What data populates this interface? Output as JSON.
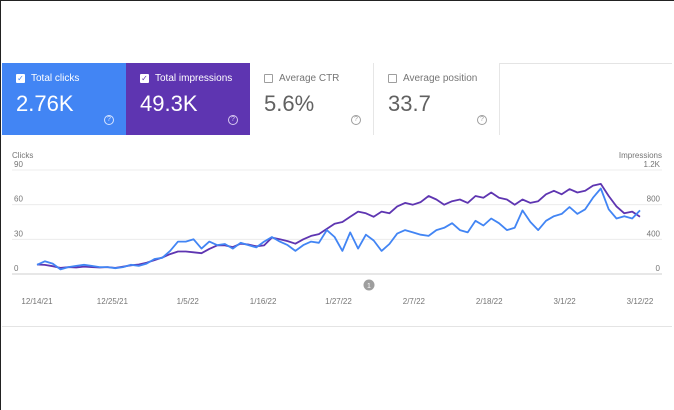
{
  "metrics": [
    {
      "label": "Total clicks",
      "value": "2.76K",
      "checked": true
    },
    {
      "label": "Total impressions",
      "value": "49.3K",
      "checked": true
    },
    {
      "label": "Average CTR",
      "value": "5.6%",
      "checked": false
    },
    {
      "label": "Average position",
      "value": "33.7",
      "checked": false
    }
  ],
  "colors": {
    "clicks": "#4285f4",
    "impressions": "#5e35b1"
  },
  "annotation_marker": "1",
  "chart_data": {
    "type": "line",
    "x_labels": [
      "12/14/21",
      "12/25/21",
      "1/5/22",
      "1/16/22",
      "1/27/22",
      "2/7/22",
      "2/18/22",
      "3/1/22",
      "3/12/22"
    ],
    "y_left": {
      "label": "Clicks",
      "ticks": [
        "0",
        "30",
        "60",
        "90"
      ],
      "range": [
        0,
        90
      ]
    },
    "y_right": {
      "label": "Impressions",
      "ticks": [
        "0",
        "400",
        "800",
        "1.2K"
      ],
      "range": [
        0,
        1200
      ]
    },
    "series": [
      {
        "name": "Total clicks",
        "axis": "left",
        "color": "#4285f4",
        "values": [
          8,
          11,
          9,
          4,
          6,
          7,
          8,
          7,
          6,
          6,
          5,
          6,
          8,
          7,
          9,
          13,
          14,
          20,
          28,
          28,
          30,
          22,
          28,
          25,
          26,
          22,
          27,
          25,
          23,
          28,
          32,
          28,
          25,
          20,
          25,
          28,
          27,
          38,
          32,
          20,
          36,
          22,
          34,
          29,
          20,
          26,
          35,
          38,
          36,
          34,
          33,
          38,
          40,
          44,
          38,
          36,
          46,
          42,
          48,
          44,
          38,
          40,
          55,
          45,
          38,
          46,
          50,
          52,
          58,
          52,
          56,
          66,
          74,
          56,
          48,
          50,
          48,
          55
        ]
      },
      {
        "name": "Total impressions",
        "axis": "right",
        "color": "#5e35b1",
        "values": [
          110,
          105,
          90,
          70,
          80,
          75,
          85,
          80,
          75,
          80,
          70,
          85,
          100,
          110,
          130,
          160,
          190,
          230,
          260,
          260,
          250,
          240,
          290,
          330,
          330,
          310,
          350,
          340,
          320,
          330,
          420,
          400,
          380,
          350,
          400,
          440,
          460,
          520,
          580,
          600,
          660,
          720,
          700,
          660,
          720,
          700,
          780,
          820,
          800,
          830,
          900,
          860,
          800,
          840,
          860,
          820,
          900,
          880,
          940,
          880,
          860,
          800,
          860,
          820,
          840,
          920,
          960,
          920,
          980,
          940,
          960,
          1020,
          1040,
          900,
          780,
          700,
          720,
          660
        ]
      }
    ]
  }
}
